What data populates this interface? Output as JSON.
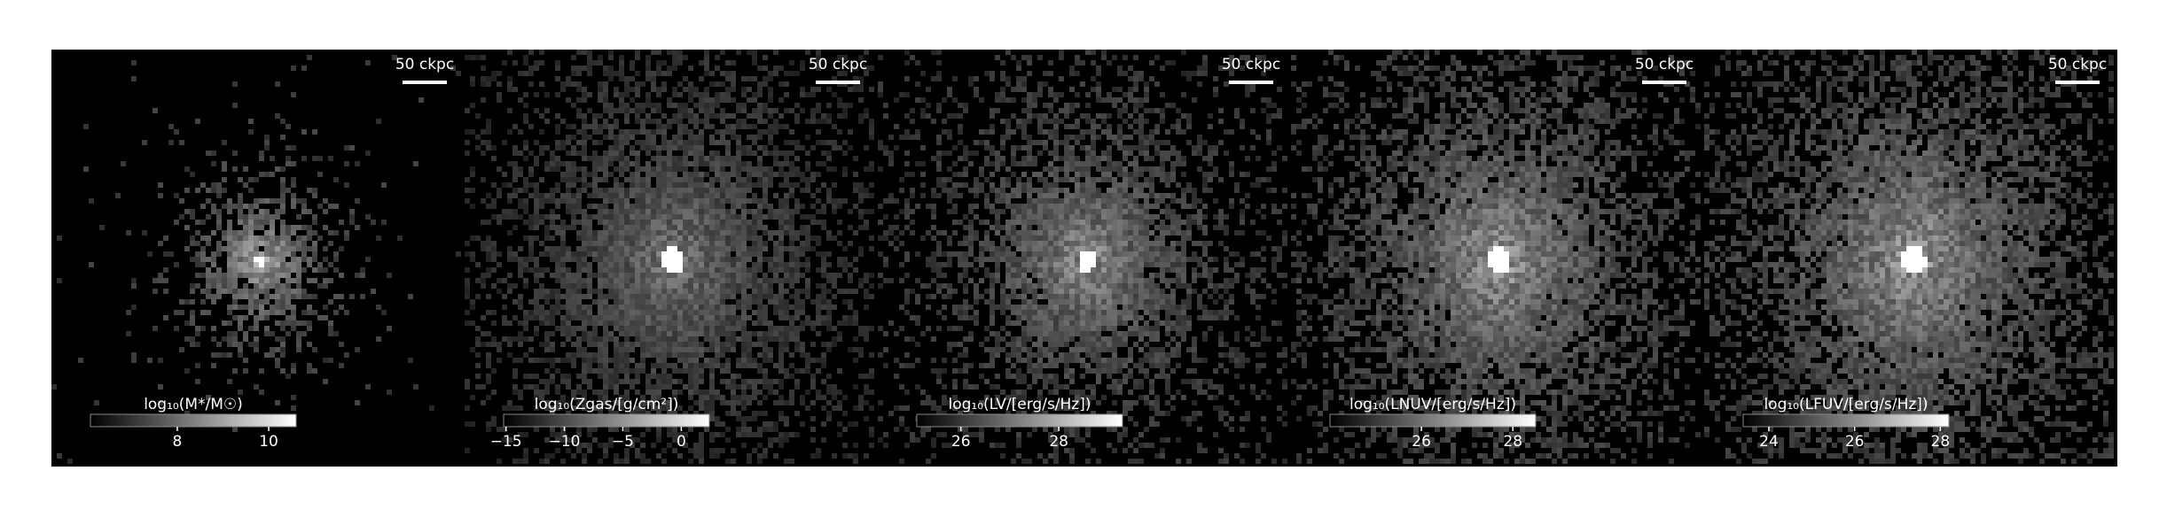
{
  "panels": [
    {
      "scale_label": "50 ckpc",
      "colorbar": {
        "label": "log₁₀(M*/M☉)",
        "lim": [
          6.1,
          10.6
        ],
        "ticks": [
          8,
          10
        ]
      }
    },
    {
      "scale_label": "50 ckpc",
      "colorbar": {
        "label": "log₁₀(Zgas/[g/cm²])",
        "lim": [
          -15.2,
          2.4
        ],
        "ticks": [
          {
            "value": -15,
            "label": "−15"
          },
          {
            "value": -10,
            "label": "−10"
          },
          {
            "value": -5,
            "label": "−5"
          },
          0
        ]
      }
    },
    {
      "scale_label": "50 ckpc",
      "colorbar": {
        "label": "log₁₀(LV/[erg/s/Hz])",
        "lim": [
          25.1,
          29.3
        ],
        "ticks": [
          26,
          28
        ]
      }
    },
    {
      "scale_label": "50 ckpc",
      "colorbar": {
        "label": "log₁₀(LNUV/[erg/s/Hz])",
        "lim": [
          24.0,
          28.5
        ],
        "ticks": [
          26,
          28
        ]
      }
    },
    {
      "scale_label": "50 ckpc",
      "colorbar": {
        "label": "log₁₀(LFUV/[erg/s/Hz])",
        "lim": [
          23.4,
          28.2
        ],
        "ticks": [
          24,
          26,
          28
        ]
      }
    }
  ]
}
